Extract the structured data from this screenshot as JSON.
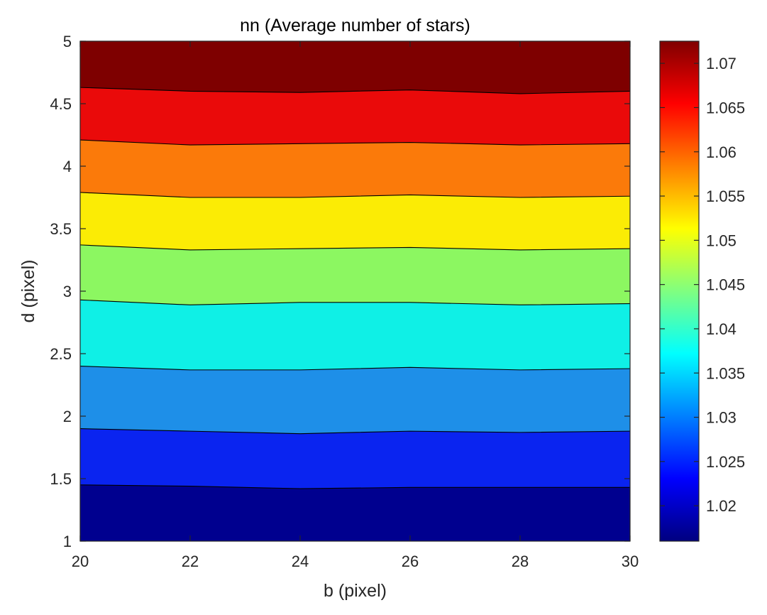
{
  "chart_data": {
    "type": "contour",
    "title": "nn (Average number of stars)",
    "xlabel": "b (pixel)",
    "ylabel": "d (pixel)",
    "xlim": [
      20,
      30
    ],
    "ylim": [
      1,
      5
    ],
    "x_ticks": [
      "20",
      "22",
      "24",
      "26",
      "28",
      "30"
    ],
    "y_ticks": [
      "1",
      "1.5",
      "2",
      "2.5",
      "3",
      "3.5",
      "4",
      "4.5",
      "5"
    ],
    "colorbar": {
      "colormap": "jet",
      "range": [
        1.016,
        1.0725
      ],
      "ticks": [
        "1.02",
        "1.025",
        "1.03",
        "1.035",
        "1.04",
        "1.045",
        "1.05",
        "1.055",
        "1.06",
        "1.065",
        "1.07"
      ]
    },
    "contour_x": [
      20,
      22,
      24,
      26,
      28,
      30
    ],
    "contour_levels": [
      {
        "level": 1.02,
        "y": [
          1.45,
          1.44,
          1.42,
          1.43,
          1.43,
          1.43
        ]
      },
      {
        "level": 1.025,
        "y": [
          1.9,
          1.88,
          1.86,
          1.88,
          1.87,
          1.88
        ]
      },
      {
        "level": 1.03,
        "y": [
          2.4,
          2.37,
          2.37,
          2.39,
          2.37,
          2.38
        ]
      },
      {
        "level": 1.035,
        "y": [
          2.93,
          2.89,
          2.91,
          2.91,
          2.89,
          2.9
        ]
      },
      {
        "level": 1.04,
        "y": [
          3.37,
          3.33,
          3.34,
          3.35,
          3.33,
          3.34
        ]
      },
      {
        "level": 1.045,
        "y": [
          3.79,
          3.75,
          3.75,
          3.77,
          3.75,
          3.76
        ]
      },
      {
        "level": 1.05,
        "y": [
          4.21,
          4.17,
          4.18,
          4.19,
          4.17,
          4.18
        ]
      },
      {
        "level": 1.055,
        "y": [
          4.63,
          4.6,
          4.59,
          4.61,
          4.58,
          4.6
        ]
      }
    ],
    "band_colors": [
      "#00008f",
      "#0a24f0",
      "#1e8fe8",
      "#0ff0e6",
      "#8cf761",
      "#fbec05",
      "#fb7a0a",
      "#ea0a0a",
      "#7e0000"
    ],
    "colors": {
      "axis": "#262626",
      "contour_line": "#000000"
    }
  }
}
